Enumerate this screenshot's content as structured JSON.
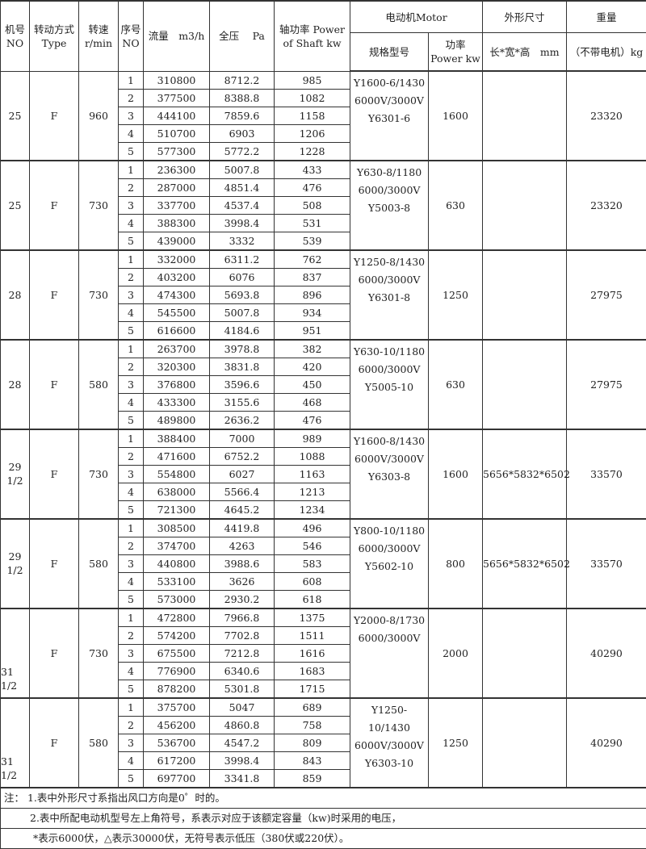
{
  "header": {
    "no": "机号 NO",
    "type": "转动方式Type",
    "speed": "转速 r/min",
    "seq": "序号 NO",
    "flow": "流量　m3/h",
    "pressure": "全压　 Pa",
    "shaft": "轴功率 Power of Shaft kw",
    "motor": "电动机Motor",
    "model": "规格型号",
    "power": "功率 Power kw",
    "dim": "外形尺寸",
    "dim_sub": "长*宽*高　mm",
    "weight": "重量",
    "weight_sub": "（不带电机）kg"
  },
  "blocks": [
    {
      "no": "25",
      "type": "F",
      "speed": "960",
      "motor": [
        "Y1600-6/1430",
        "6000V/3000V",
        "Y6301-6"
      ],
      "power": "1600",
      "dim": "",
      "weight": "23320",
      "rows": [
        [
          "1",
          "310800",
          "8712.2",
          "985"
        ],
        [
          "2",
          "377500",
          "8388.8",
          "1082"
        ],
        [
          "3",
          "444100",
          "7859.6",
          "1158"
        ],
        [
          "4",
          "510700",
          "6903",
          "1206"
        ],
        [
          "5",
          "577300",
          "5772.2",
          "1228"
        ]
      ]
    },
    {
      "no": "25",
      "type": "F",
      "speed": "730",
      "motor": [
        "Y630-8/1180",
        "6000/3000V",
        "Y5003-8"
      ],
      "power": "630",
      "dim": "",
      "weight": "23320",
      "rows": [
        [
          "1",
          "236300",
          "5007.8",
          "433"
        ],
        [
          "2",
          "287000",
          "4851.4",
          "476"
        ],
        [
          "3",
          "337700",
          "4537.4",
          "508"
        ],
        [
          "4",
          "388300",
          "3998.4",
          "531"
        ],
        [
          "5",
          "439000",
          "3332",
          "539"
        ]
      ]
    },
    {
      "no": "28",
      "type": "F",
      "speed": "730",
      "motor": [
        "Y1250-8/1430",
        "6000/3000V",
        "Y6301-8"
      ],
      "power": "1250",
      "dim": "",
      "weight": "27975",
      "rows": [
        [
          "1",
          "332000",
          "6311.2",
          "762"
        ],
        [
          "2",
          "403200",
          "6076",
          "837"
        ],
        [
          "3",
          "474300",
          "5693.8",
          "896"
        ],
        [
          "4",
          "545500",
          "5007.8",
          "934"
        ],
        [
          "5",
          "616600",
          "4184.6",
          "951"
        ]
      ]
    },
    {
      "no": "28",
      "type": "F",
      "speed": "580",
      "motor": [
        "Y630-10/1180",
        "6000/3000V",
        "Y5005-10"
      ],
      "power": "630",
      "dim": "",
      "weight": "27975",
      "rows": [
        [
          "1",
          "263700",
          "3978.8",
          "382"
        ],
        [
          "2",
          "320300",
          "3831.8",
          "420"
        ],
        [
          "3",
          "376800",
          "3596.6",
          "450"
        ],
        [
          "4",
          "433300",
          "3155.6",
          "468"
        ],
        [
          "5",
          "489800",
          "2636.2",
          "476"
        ]
      ]
    },
    {
      "no": "29 1/2",
      "type": "F",
      "speed": "730",
      "motor": [
        "Y1600-8/1430",
        "6000V/3000V",
        "Y6303-8"
      ],
      "power": "1600",
      "dim": "5656*5832*6502",
      "weight": "33570",
      "rows": [
        [
          "1",
          "388400",
          "7000",
          "989"
        ],
        [
          "2",
          "471600",
          "6752.2",
          "1088"
        ],
        [
          "3",
          "554800",
          "6027",
          "1163"
        ],
        [
          "4",
          "638000",
          "5566.4",
          "1213"
        ],
        [
          "5",
          "721300",
          "4645.2",
          "1234"
        ]
      ]
    },
    {
      "no": "29 1/2",
      "type": "F",
      "speed": "580",
      "motor": [
        "Y800-10/1180",
        "6000/3000V",
        "Y5602-10"
      ],
      "power": "800",
      "dim": "5656*5832*6502",
      "weight": "33570",
      "rows": [
        [
          "1",
          "308500",
          "4419.8",
          "496"
        ],
        [
          "2",
          "374700",
          "4263",
          "546"
        ],
        [
          "3",
          "440800",
          "3988.6",
          "583"
        ],
        [
          "4",
          "533100",
          "3626",
          "608"
        ],
        [
          "5",
          "573000",
          "2930.2",
          "618"
        ]
      ]
    },
    {
      "no": "31 1/2",
      "type": "F",
      "speed": "730",
      "motor": [
        "Y2000-8/1730",
        "6000/3000V"
      ],
      "power": "2000",
      "dim": "",
      "weight": "40290",
      "rows": [
        [
          "1",
          "472800",
          "7966.8",
          "1375"
        ],
        [
          "2",
          "574200",
          "7702.8",
          "1511"
        ],
        [
          "3",
          "675500",
          "7212.8",
          "1616"
        ],
        [
          "4",
          "776900",
          "6340.6",
          "1683"
        ],
        [
          "5",
          "878200",
          "5301.8",
          "1715"
        ]
      ]
    },
    {
      "no": "31 1/2",
      "type": "F",
      "speed": "580",
      "motor": [
        "Y1250-10/1430",
        "6000V/3000V",
        "Y6303-10"
      ],
      "power": "1250",
      "dim": "",
      "weight": "40290",
      "rows": [
        [
          "1",
          "375700",
          "5047",
          "689"
        ],
        [
          "2",
          "456200",
          "4860.8",
          "758"
        ],
        [
          "3",
          "536700",
          "4547.2",
          "809"
        ],
        [
          "4",
          "617200",
          "3998.4",
          "843"
        ],
        [
          "5",
          "697700",
          "3341.8",
          "859"
        ]
      ]
    }
  ],
  "notes": [
    "注：  1.表中外形尺寸系指出风口方向是0゜时的。",
    "2.表中所配电动机型号左上角符号，系表示对应于该额定容量（kw)时采用的电压，",
    "*表示6000伏，△表示30000伏，无符号表示低压（380伏或220伏）。"
  ]
}
